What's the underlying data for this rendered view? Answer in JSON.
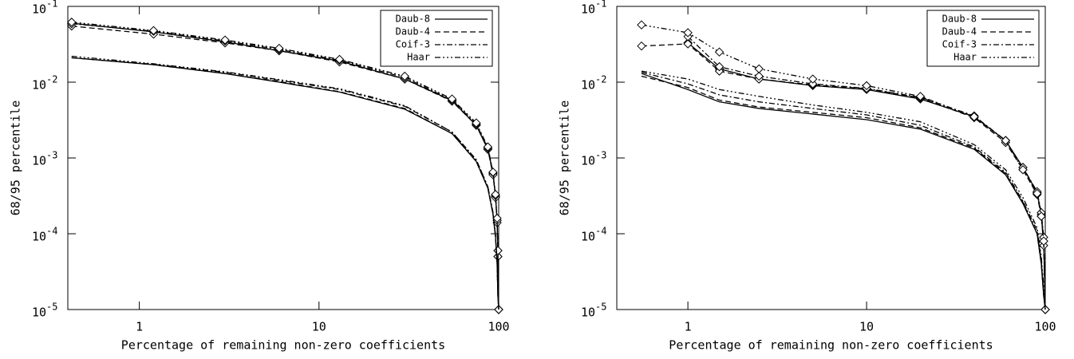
{
  "chart_data": [
    {
      "type": "line",
      "log_x": true,
      "log_y": true,
      "legend": "upper right",
      "xlabel": "Percentage of remaining non-zero coefficients",
      "ylabel": "68/95 percentile",
      "xlim": [
        0.4,
        100
      ],
      "ylim": [
        1e-05,
        0.1
      ],
      "xticks": [
        1,
        10,
        100
      ],
      "yticks": [
        {
          "value": 0.1,
          "label": "10",
          "exp": "-1"
        },
        {
          "value": 0.01,
          "label": "10",
          "exp": "-2"
        },
        {
          "value": 0.001,
          "label": "10",
          "exp": "-3"
        },
        {
          "value": 0.0001,
          "label": "10",
          "exp": "-4"
        },
        {
          "value": 1e-05,
          "label": "10",
          "exp": "-5"
        }
      ],
      "x": [
        0.42,
        1.2,
        3,
        6,
        13,
        30,
        55,
        75,
        87,
        93,
        96,
        98,
        99,
        100
      ],
      "series": [
        {
          "name": "Daub-8",
          "color": "#000",
          "dash": "none",
          "marker": "diamond",
          "values": [
            0.06,
            0.046,
            0.034,
            0.026,
            0.019,
            0.011,
            0.0057,
            0.0027,
            0.0013,
            0.00062,
            0.00031,
            0.00015,
            5e-05,
            1e-05
          ]
        },
        {
          "name": "Daub-4",
          "color": "#000",
          "dash": "7,4",
          "marker": "diamond",
          "values": [
            0.055,
            0.043,
            0.033,
            0.026,
            0.0185,
            0.011,
            0.0056,
            0.0027,
            0.0013,
            0.0006,
            0.0003,
            0.00014,
            5e-05,
            1e-05
          ]
        },
        {
          "name": "Coif-3",
          "color": "#000",
          "dash": "7,3,2,3",
          "marker": "diamond",
          "values": [
            0.059,
            0.047,
            0.035,
            0.027,
            0.0195,
            0.0115,
            0.0058,
            0.0028,
            0.00135,
            0.00064,
            0.00032,
            0.00015,
            6e-05,
            1e-05
          ]
        },
        {
          "name": "Haar",
          "color": "#000",
          "dash": "7,3,2,3,2,3,2,3",
          "marker": "diamond",
          "values": [
            0.062,
            0.048,
            0.036,
            0.028,
            0.02,
            0.012,
            0.006,
            0.0029,
            0.0014,
            0.00065,
            0.00033,
            0.00016,
            6e-05,
            1e-05
          ]
        },
        {
          "color": "#000",
          "dash": "none",
          "values": [
            0.021,
            0.017,
            0.013,
            0.01,
            0.0074,
            0.0044,
            0.0021,
            0.0009,
            0.0004,
            0.00018,
            9e-05,
            4e-05,
            1.5e-05,
            1e-05
          ]
        },
        {
          "color": "#000",
          "dash": "7,4",
          "values": [
            0.021,
            0.017,
            0.013,
            0.0102,
            0.0075,
            0.0045,
            0.0021,
            0.0009,
            0.0004,
            0.00018,
            9e-05,
            4e-05,
            1.5e-05,
            1e-05
          ]
        },
        {
          "color": "#000",
          "dash": "7,3,2,3",
          "values": [
            0.021,
            0.0172,
            0.0135,
            0.0106,
            0.008,
            0.0048,
            0.0022,
            0.00095,
            0.00042,
            0.00019,
            9.5e-05,
            4.2e-05,
            1.6e-05,
            1e-05
          ]
        },
        {
          "color": "#000",
          "dash": "7,3,2,3,2,3,2,3",
          "values": [
            0.022,
            0.0175,
            0.0137,
            0.0108,
            0.0082,
            0.0049,
            0.0022,
            0.00095,
            0.00042,
            0.00019,
            9.5e-05,
            4.2e-05,
            1.6e-05,
            1e-05
          ]
        }
      ]
    },
    {
      "type": "line",
      "log_x": true,
      "log_y": true,
      "legend": "upper right",
      "xlabel": "Percentage of remaining non-zero coefficients",
      "ylabel": "68/95 percentile",
      "xlim": [
        0.4,
        100
      ],
      "ylim": [
        1e-05,
        0.1
      ],
      "xticks": [
        1,
        10,
        100
      ],
      "yticks": [
        {
          "value": 0.1,
          "label": "10",
          "exp": "-1"
        },
        {
          "value": 0.01,
          "label": "10",
          "exp": "-2"
        },
        {
          "value": 0.001,
          "label": "10",
          "exp": "-3"
        },
        {
          "value": 0.0001,
          "label": "10",
          "exp": "-4"
        },
        {
          "value": 1e-05,
          "label": "10",
          "exp": "-5"
        }
      ],
      "x": [
        0.55,
        1,
        1.5,
        2.5,
        5,
        10,
        20,
        40,
        60,
        75,
        90,
        95,
        98,
        100
      ],
      "series": [
        {
          "name": "Daub-8",
          "color": "#000",
          "dash": "none",
          "marker": "diamond",
          "values": [
            null,
            0.033,
            0.015,
            0.011,
            0.009,
            0.008,
            0.006,
            0.0035,
            0.0017,
            0.00075,
            0.00035,
            0.00018,
            8e-05,
            1e-05
          ]
        },
        {
          "name": "Daub-4",
          "color": "#000",
          "dash": "7,4",
          "marker": "diamond",
          "values": [
            0.03,
            0.032,
            0.014,
            0.011,
            0.0092,
            0.0082,
            0.0062,
            0.0034,
            0.0016,
            0.0007,
            0.00033,
            0.00017,
            7e-05,
            1e-05
          ]
        },
        {
          "name": "Coif-3",
          "color": "#000",
          "dash": "7,3,2,3",
          "marker": "diamond",
          "values": [
            null,
            0.04,
            0.016,
            0.012,
            0.0095,
            0.0083,
            0.0063,
            0.0036,
            0.0017,
            0.00075,
            0.00036,
            0.00019,
            9e-05,
            1e-05
          ]
        },
        {
          "name": "Haar",
          "color": "#000",
          "dash": "7,3,2,3,2,3,2,3",
          "marker": "diamond",
          "values": [
            0.057,
            0.045,
            0.025,
            0.015,
            0.011,
            0.009,
            0.0065,
            0.0035,
            0.0017,
            0.0007,
            0.00034,
            0.00017,
            8e-05,
            1e-05
          ]
        },
        {
          "color": "#000",
          "dash": "none",
          "values": [
            0.013,
            0.008,
            0.0055,
            0.0045,
            0.0038,
            0.0032,
            0.0024,
            0.0013,
            0.0006,
            0.00025,
            0.0001,
            4e-05,
            1.5e-05,
            1e-05
          ]
        },
        {
          "color": "#000",
          "dash": "7,4",
          "values": [
            0.012,
            0.0085,
            0.0058,
            0.0047,
            0.004,
            0.0034,
            0.0025,
            0.00135,
            0.00062,
            0.00026,
            0.0001,
            4e-05,
            1.5e-05,
            1e-05
          ]
        },
        {
          "color": "#000",
          "dash": "7,3,2,3",
          "values": [
            0.0135,
            0.0095,
            0.0068,
            0.0055,
            0.0045,
            0.0037,
            0.0027,
            0.0014,
            0.00065,
            0.00027,
            0.00011,
            4.5e-05,
            1.6e-05,
            1e-05
          ]
        },
        {
          "color": "#000",
          "dash": "7,3,2,3,2,3,2,3",
          "values": [
            0.014,
            0.011,
            0.008,
            0.0065,
            0.005,
            0.004,
            0.003,
            0.0015,
            0.0007,
            0.0003,
            0.00012,
            5e-05,
            2e-05,
            1e-05
          ]
        }
      ]
    }
  ]
}
